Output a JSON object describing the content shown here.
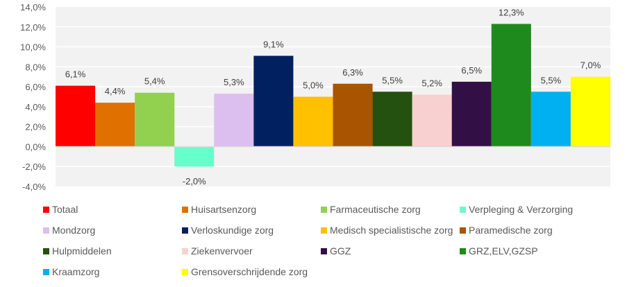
{
  "chart_data": {
    "type": "bar",
    "title": "",
    "xlabel": "",
    "ylabel": "",
    "ylim": [
      -4.0,
      14.0
    ],
    "y_ticks": [
      14,
      12,
      10,
      8,
      6,
      4,
      2,
      0,
      -2,
      -4
    ],
    "y_tick_labels": [
      "14,0%",
      "12,0%",
      "10,0%",
      "8,0%",
      "6,0%",
      "4,0%",
      "2,0%",
      "0,0%",
      "-2,0%",
      "-4,0%"
    ],
    "grid": true,
    "legend_position": "bottom",
    "categories": [
      "Totaal",
      "Huisartsenzorg",
      "Farmaceutische zorg",
      "Verpleging & Verzorging",
      "Mondzorg",
      "Verloskundige zorg",
      "Medisch specialistische zorg",
      "Paramedische zorg",
      "Hulpmiddelen",
      "Ziekenvervoer",
      "GGZ",
      "GRZ,ELV,GZSP",
      "Kraamzorg",
      "Grensoverschrijdende zorg"
    ],
    "values": [
      6.1,
      4.4,
      5.4,
      -2.0,
      5.3,
      9.1,
      5.0,
      6.3,
      5.5,
      5.2,
      6.5,
      12.3,
      5.5,
      7.0
    ],
    "value_labels": [
      "6,1%",
      "4,4%",
      "5,4%",
      "-2,0%",
      "5,3%",
      "9,1%",
      "5,0%",
      "6,3%",
      "5,5%",
      "5,2%",
      "6,5%",
      "12,3%",
      "5,5%",
      "7,0%"
    ],
    "colors": [
      "#ff0000",
      "#e07000",
      "#92d050",
      "#66ffcc",
      "#dcbfef",
      "#002060",
      "#ffc000",
      "#a85400",
      "#245010",
      "#f8d0d0",
      "#321045",
      "#1e8a1e",
      "#00b0f0",
      "#ffff00"
    ]
  },
  "colors": {
    "plot_background": "#f2f2f2",
    "gridline": "#ffffff",
    "zero_line": "#d9d9d9",
    "text": "#595959"
  }
}
